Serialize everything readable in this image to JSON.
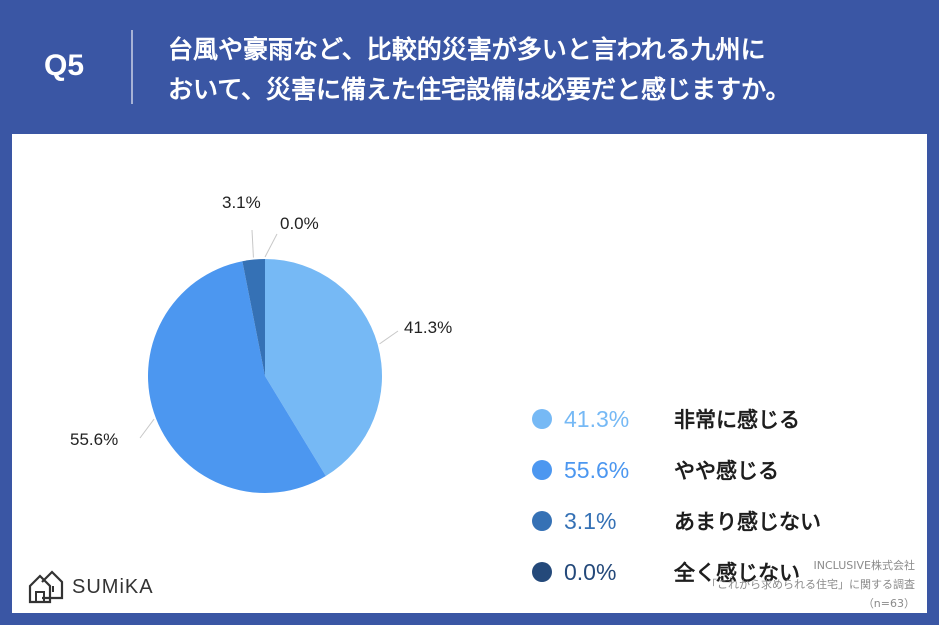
{
  "header": {
    "q_label": "Q5",
    "question_line1": "台風や豪雨など、比較的災害が多いと言われる九州に",
    "question_line2": "おいて、災害に備えた住宅設備は必要だと感じますか。"
  },
  "chart_data": {
    "type": "pie",
    "title": "",
    "legend_position": "right",
    "slices": [
      {
        "label": "非常に感じる",
        "value": 41.3,
        "display": "41.3%",
        "color": "#76b9f5"
      },
      {
        "label": "やや感じる",
        "value": 55.6,
        "display": "55.6%",
        "color": "#4c97f0"
      },
      {
        "label": "あまり感じない",
        "value": 3.1,
        "display": "3.1%",
        "color": "#3571b5"
      },
      {
        "label": "全く感じない",
        "value": 0.0,
        "display": "0.0%",
        "color": "#24497a"
      }
    ]
  },
  "footer": {
    "logo_text": "SUMiKA",
    "source_line1": "INCLUSIVE株式会社",
    "source_line2": "「これから求められる住宅」に関する調査",
    "source_line3": "（n=63）"
  }
}
